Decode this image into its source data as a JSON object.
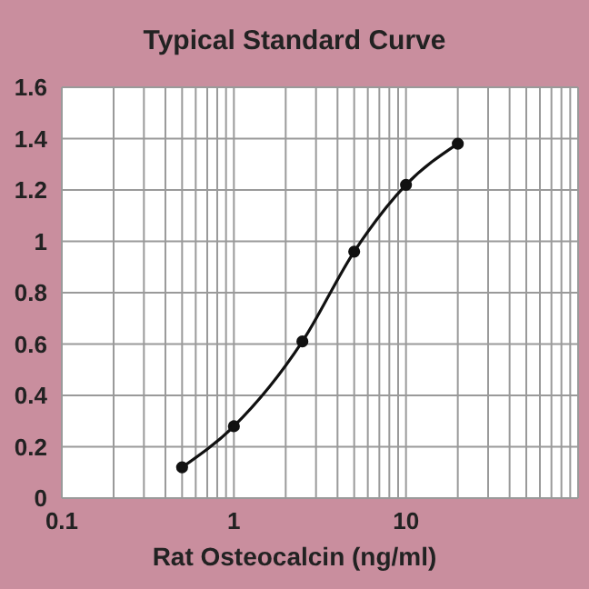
{
  "chart_data": {
    "type": "line",
    "title": "Typical Standard Curve",
    "xlabel": "Rat Osteocalcin (ng/ml)",
    "x": [
      0.5,
      1,
      2.5,
      5,
      10,
      20
    ],
    "series": [
      {
        "color": "#111111",
        "values": [
          0.12,
          0.28,
          0.61,
          0.96,
          1.22,
          1.38
        ]
      }
    ],
    "log": "x",
    "xlim": [
      0.1,
      100
    ],
    "xticks": [
      0.1,
      {
        "value": 0.2,
        "label": null
      },
      {
        "value": 0.3,
        "label": null
      },
      {
        "value": 0.4,
        "label": null
      },
      {
        "value": 0.5,
        "label": null
      },
      {
        "value": 0.6,
        "label": null
      },
      {
        "value": 0.7,
        "label": null
      },
      {
        "value": 0.8,
        "label": null
      },
      {
        "value": 0.9,
        "label": null
      },
      1,
      {
        "value": 2,
        "label": null
      },
      {
        "value": 3,
        "label": null
      },
      {
        "value": 4,
        "label": null
      },
      {
        "value": 5,
        "label": null
      },
      {
        "value": 6,
        "label": null
      },
      {
        "value": 7,
        "label": null
      },
      {
        "value": 8,
        "label": null
      },
      {
        "value": 9,
        "label": null
      },
      10,
      {
        "value": 20,
        "label": null
      },
      {
        "value": 30,
        "label": null
      },
      {
        "value": 40,
        "label": null
      },
      {
        "value": 50,
        "label": null
      },
      {
        "value": 60,
        "label": null
      },
      {
        "value": 70,
        "label": null
      },
      {
        "value": 80,
        "label": null
      },
      {
        "value": 90,
        "label": null
      },
      {
        "value": 100,
        "label": null
      }
    ],
    "ylim": [
      0,
      1.6
    ],
    "yticks": [
      0,
      0.2,
      0.4,
      0.6,
      0.8,
      1,
      1.2,
      1.4,
      1.6
    ],
    "grid": true,
    "marker": "circle",
    "line_style": "solid"
  }
}
